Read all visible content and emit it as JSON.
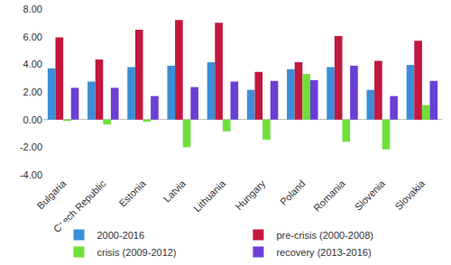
{
  "chart_data": {
    "type": "bar",
    "categories": [
      "Bulgaria",
      "Czech Republic",
      "Estonia",
      "Latvia",
      "Lithuania",
      "Hungary",
      "Poland",
      "Romania",
      "Slovenia",
      "Slovakia"
    ],
    "series": [
      {
        "name": "2000-2016",
        "color": "#3b8fd8",
        "values": [
          3.7,
          2.75,
          3.8,
          3.9,
          4.15,
          2.15,
          3.65,
          3.8,
          2.15,
          3.95
        ]
      },
      {
        "name": "pre-crisis (2000-2008)",
        "color": "#c2173f",
        "values": [
          5.95,
          4.35,
          6.5,
          7.2,
          7.0,
          3.45,
          4.15,
          6.05,
          4.25,
          5.7
        ]
      },
      {
        "name": "crisis (2009-2012)",
        "color": "#6fe03a",
        "values": [
          -0.1,
          -0.35,
          -0.15,
          -2.0,
          -0.85,
          -1.45,
          3.3,
          -1.6,
          -2.15,
          1.05
        ]
      },
      {
        "name": "recovery (2013-2016)",
        "color": "#6a3fd4",
        "values": [
          2.3,
          2.3,
          1.7,
          2.35,
          2.75,
          2.8,
          2.85,
          3.9,
          1.7,
          2.8
        ]
      }
    ],
    "ylim": [
      -4,
      8
    ],
    "yticks": [
      {
        "value": -4,
        "label": "-4.00"
      },
      {
        "value": -2,
        "label": "-2.00"
      },
      {
        "value": 0,
        "label": "0.00"
      },
      {
        "value": 2,
        "label": "2.00"
      },
      {
        "value": 4,
        "label": "4.00"
      },
      {
        "value": 6,
        "label": "6.00"
      },
      {
        "value": 8,
        "label": "8.00"
      }
    ],
    "grid": false,
    "legend": "bottom"
  }
}
